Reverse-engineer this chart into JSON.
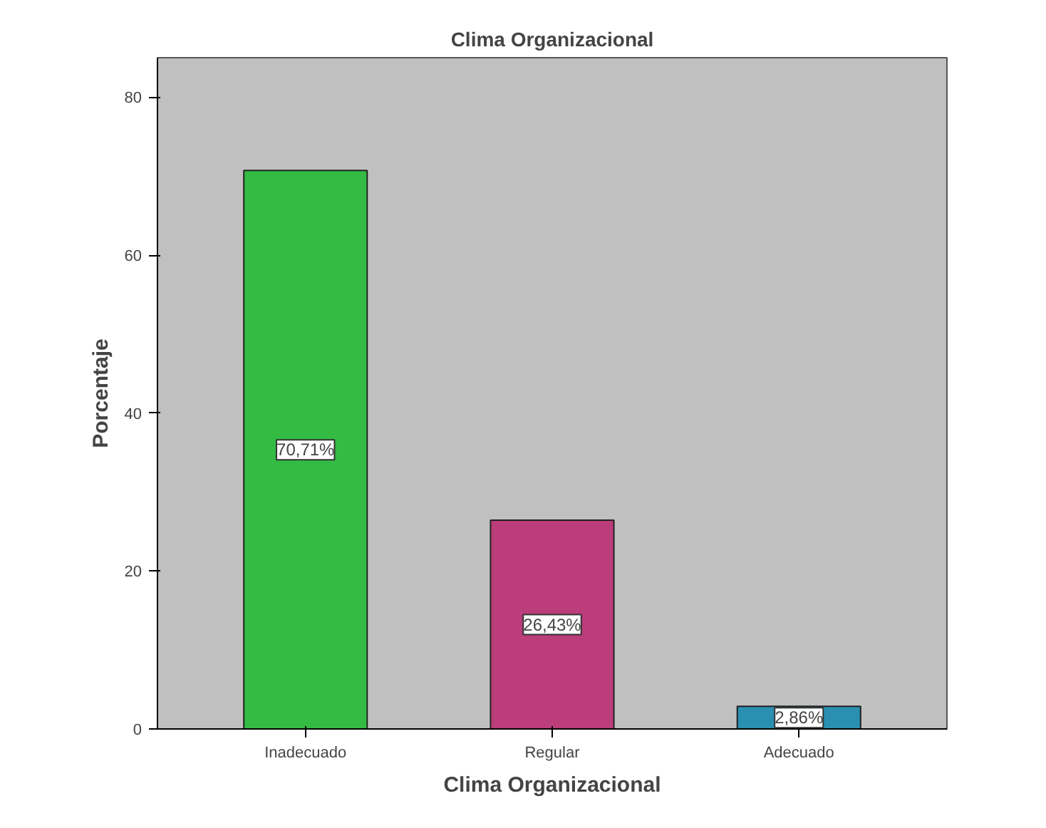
{
  "chart_data": {
    "type": "bar",
    "title": "Clima Organizacional",
    "xlabel": "Clima Organizacional",
    "ylabel": "Porcentaje",
    "categories": [
      "Inadecuado",
      "Regular",
      "Adecuado"
    ],
    "values": [
      70.71,
      26.43,
      2.86
    ],
    "colors": [
      "#33bb44",
      "#bb3d7a",
      "#2a8fb0"
    ],
    "value_labels": [
      "70,71%",
      "26,43%",
      "2,86%"
    ],
    "ylim": [
      0,
      85
    ],
    "yticks": [
      0,
      20,
      40,
      60,
      80
    ],
    "grid": false
  }
}
